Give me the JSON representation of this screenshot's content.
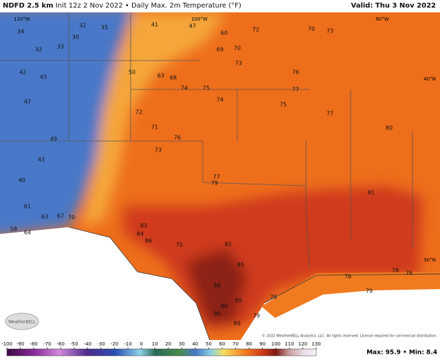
{
  "header": {
    "title": "NDFD 2.5 km",
    "subtitle": "Init 12z 2 Nov 2022 • Daily Max. 2m Temperature (°F)",
    "valid": "Valid: Thu 3 Nov 2022"
  },
  "grid_labels": [
    "110°W",
    "100°W",
    "90°W",
    "40°N",
    "30°N"
  ],
  "station_values": [
    34,
    32,
    33,
    42,
    43,
    47,
    49,
    43,
    40,
    61,
    63,
    67,
    70,
    58,
    64,
    30,
    32,
    35,
    41,
    47,
    60,
    72,
    70,
    73,
    50,
    63,
    68,
    69,
    70,
    74,
    75,
    74,
    73,
    76,
    77,
    75,
    77,
    80,
    72,
    71,
    76,
    73,
    77,
    79,
    81,
    82,
    83,
    84,
    86,
    75,
    85,
    88,
    86,
    85,
    89,
    90,
    78,
    79,
    76,
    79,
    78,
    76
  ],
  "logo": "WeatherBELL",
  "copyright": "© 2022 WeatherBELL Analytics, LLC. All rights reserved. License required for commercial distribution.",
  "colorbar": {
    "ticks": [
      -100,
      -90,
      -80,
      -70,
      -60,
      -50,
      -40,
      -30,
      -20,
      -10,
      0,
      10,
      20,
      30,
      40,
      50,
      60,
      70,
      80,
      90,
      100,
      110,
      120,
      130
    ]
  },
  "stats": "Max: 95.9 • Min: 8.4"
}
